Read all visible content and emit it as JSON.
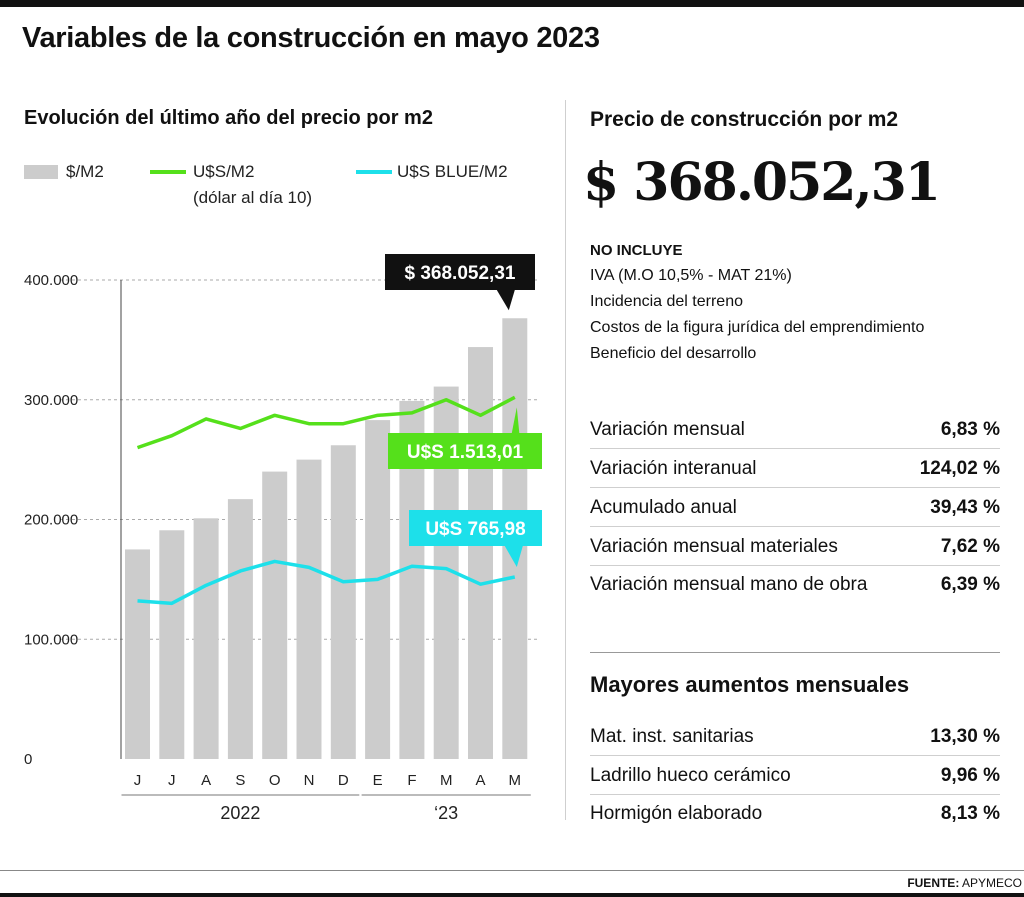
{
  "title": "Variables de la construcción en mayo 2023",
  "chart_data": {
    "type": "bar",
    "title": "Evolución del último año del precio por m2",
    "categories": [
      "J",
      "J",
      "A",
      "S",
      "O",
      "N",
      "D",
      "E",
      "F",
      "M",
      "A",
      "M"
    ],
    "year_groups": [
      {
        "label": "2022",
        "from": 0,
        "to": 6
      },
      {
        "label": "‘23",
        "from": 7,
        "to": 11
      }
    ],
    "ylim": [
      0,
      400000
    ],
    "yticks": [
      0,
      100000,
      200000,
      300000,
      400000
    ],
    "ytick_labels": [
      "0",
      "100.000",
      "200.000",
      "300.000",
      "400.000"
    ],
    "grid": true,
    "legend_position": "top",
    "series": [
      {
        "name": "$/M2",
        "kind": "bar",
        "color": "#cccccc",
        "values": [
          175000,
          191000,
          201000,
          217000,
          240000,
          250000,
          262000,
          283000,
          299000,
          311000,
          344000,
          368052
        ]
      },
      {
        "name": "U$S/M2",
        "note": "(dólar al día 10)",
        "kind": "line",
        "color": "#55e01b",
        "values": [
          260000,
          270000,
          284000,
          276000,
          287000,
          280000,
          280000,
          287000,
          289000,
          300000,
          287000,
          302000
        ]
      },
      {
        "name": "U$S BLUE/M2",
        "kind": "line",
        "color": "#1de0ea",
        "values": [
          132000,
          130000,
          145000,
          157000,
          165000,
          160000,
          148000,
          150000,
          161000,
          159000,
          146000,
          152000
        ]
      }
    ],
    "callouts": [
      {
        "text": "$ 368.052,31",
        "bg": "#111111",
        "fg": "#ffffff"
      },
      {
        "text": "U$S 1.513,01",
        "bg": "#55e01b",
        "fg": "#ffffff"
      },
      {
        "text": "U$S 765,98",
        "bg": "#1de0ea",
        "fg": "#ffffff"
      }
    ]
  },
  "price": {
    "title": "Precio de construcción por m2",
    "value": "$ 368.052,31",
    "excludes_heading": "NO INCLUYE",
    "excludes": [
      "IVA (M.O 10,5% - MAT 21%)",
      "Incidencia del terreno",
      "Costos de la figura jurídica del emprendimiento",
      "Beneficio del desarrollo"
    ]
  },
  "variations": [
    {
      "label": "Variación mensual",
      "value": "6,83 %"
    },
    {
      "label": "Variación interanual",
      "value": "124,02 %"
    },
    {
      "label": "Acumulado anual",
      "value": "39,43 %"
    },
    {
      "label": "Variación mensual materiales",
      "value": "7,62 %"
    },
    {
      "label": "Variación mensual mano de obra",
      "value": "6,39 %"
    }
  ],
  "increases": {
    "title": "Mayores aumentos mensuales",
    "items": [
      {
        "label": "Mat. inst. sanitarias",
        "value": "13,30 %"
      },
      {
        "label": "Ladrillo hueco cerámico",
        "value": "9,96 %"
      },
      {
        "label": "Hormigón elaborado",
        "value": "8,13 %"
      }
    ]
  },
  "source": {
    "label": "FUENTE:",
    "value": "APYMECO"
  }
}
